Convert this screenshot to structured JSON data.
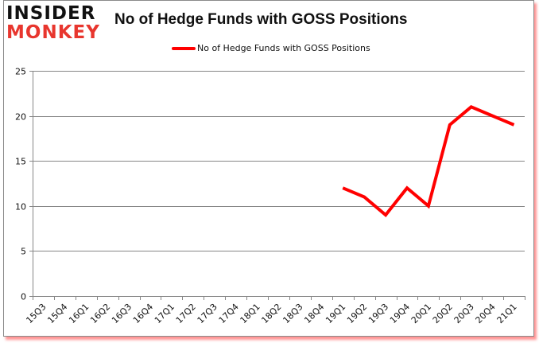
{
  "header": {
    "logo_line1": "INSIDER",
    "logo_line2": "MONKEY",
    "title": "No of Hedge Funds with GOSS Positions"
  },
  "legend": {
    "label": "No of Hedge Funds with GOSS Positions",
    "color": "#ff0000"
  },
  "colors": {
    "line": "#ff0000",
    "grid": "#868686",
    "logo_accent": "#e8362e",
    "frame_shadow": "#ff3c3c"
  },
  "chart_data": {
    "type": "line",
    "title": "No of Hedge Funds with GOSS Positions",
    "xlabel": "",
    "ylabel": "",
    "categories": [
      "15Q3",
      "15Q4",
      "16Q1",
      "16Q2",
      "16Q3",
      "16Q4",
      "17Q1",
      "17Q2",
      "17Q3",
      "17Q4",
      "18Q1",
      "18Q2",
      "18Q3",
      "18Q4",
      "19Q1",
      "19Q2",
      "19Q3",
      "19Q4",
      "20Q1",
      "20Q2",
      "20Q3",
      "20Q4",
      "21Q1"
    ],
    "series": [
      {
        "name": "No of Hedge Funds with GOSS Positions",
        "values": [
          null,
          null,
          null,
          null,
          null,
          null,
          null,
          null,
          null,
          null,
          null,
          null,
          null,
          null,
          12,
          11,
          9,
          12,
          10,
          19,
          21,
          20,
          19
        ]
      }
    ],
    "ylim": [
      0,
      25
    ],
    "yticks": [
      0,
      5,
      10,
      15,
      20,
      25
    ],
    "grid": true,
    "legend_position": "top"
  }
}
